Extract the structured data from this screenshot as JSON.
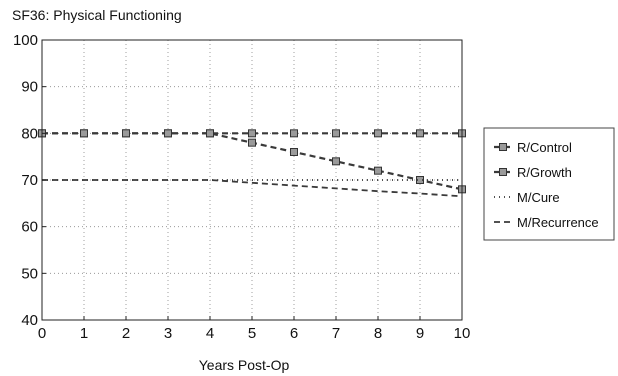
{
  "chart_data": {
    "type": "line",
    "title": "SF36: Physical Functioning",
    "xlabel": "Years Post-Op",
    "ylabel": "",
    "xlim": [
      0,
      10
    ],
    "ylim": [
      40,
      100
    ],
    "x_ticks": [
      "0",
      "1",
      "2",
      "3",
      "4",
      "5",
      "6",
      "7",
      "8",
      "9",
      "10"
    ],
    "y_ticks": [
      "40",
      "50",
      "60",
      "70",
      "80",
      "90",
      "100"
    ],
    "grid": true,
    "legend_position": "right",
    "series": [
      {
        "name": "R/Control",
        "style": "dashed-marker",
        "color": "#3a3a3a",
        "x": [
          0,
          1,
          2,
          3,
          4,
          5,
          6,
          7,
          8,
          9,
          10
        ],
        "y": [
          80,
          80,
          80,
          80,
          80,
          80,
          80,
          80,
          80,
          80,
          80
        ]
      },
      {
        "name": "R/Growth",
        "style": "dashed-marker",
        "color": "#3a3a3a",
        "x": [
          0,
          1,
          2,
          3,
          4,
          5,
          6,
          7,
          8,
          9,
          10
        ],
        "y": [
          80,
          80,
          80,
          80,
          80,
          78,
          76,
          74,
          72,
          70,
          68
        ]
      },
      {
        "name": "M/Cure",
        "style": "dotted",
        "color": "#3a3a3a",
        "x": [
          0,
          1,
          2,
          3,
          4,
          5,
          6,
          7,
          8,
          9,
          10
        ],
        "y": [
          70,
          70,
          70,
          70,
          70,
          70,
          70,
          70,
          70,
          70,
          70
        ]
      },
      {
        "name": "M/Recurrence",
        "style": "dashed",
        "color": "#3a3a3a",
        "x": [
          0,
          1,
          2,
          3,
          4,
          5,
          6,
          7,
          8,
          9,
          10
        ],
        "y": [
          70,
          70,
          70,
          70,
          70,
          69.4,
          68.8,
          68.2,
          67.6,
          67.1,
          66.5
        ]
      }
    ]
  }
}
